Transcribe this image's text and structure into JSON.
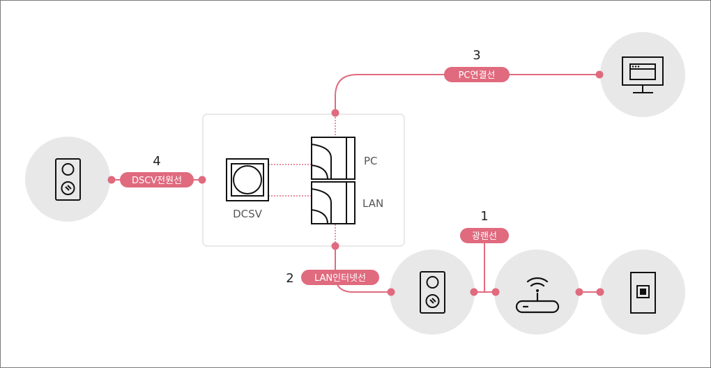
{
  "labels": {
    "dcsv": "DCSV",
    "pc": "PC",
    "lan": "LAN"
  },
  "connections": {
    "fiber": {
      "number": "1",
      "label": "광랜선"
    },
    "lan_internet": {
      "number": "2",
      "label": "LAN인터넷선"
    },
    "pc_cable": {
      "number": "3",
      "label": "PC연결선"
    },
    "dcsv_power": {
      "number": "4",
      "label": "DSCV전원선"
    }
  },
  "icons": {
    "power_outlet_left": "outlet-icon",
    "power_outlet_bottom": "outlet-icon",
    "router": "wifi-router-icon",
    "wall_jack": "wall-jack-icon",
    "monitor": "monitor-icon"
  },
  "colors": {
    "accent": "#e06a7e",
    "circle_bg": "#e8e8e8",
    "panel_border": "#e2e2e2",
    "icon_stroke": "#111111"
  }
}
